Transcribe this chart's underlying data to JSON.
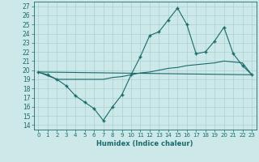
{
  "bg_color": "#cce8e8",
  "line_color": "#1a6b6b",
  "grid_color": "#aad0d0",
  "xlim": [
    -0.5,
    23.5
  ],
  "ylim": [
    13.5,
    27.5
  ],
  "yticks": [
    14,
    15,
    16,
    17,
    18,
    19,
    20,
    21,
    22,
    23,
    24,
    25,
    26,
    27
  ],
  "xticks": [
    0,
    1,
    2,
    3,
    4,
    5,
    6,
    7,
    8,
    9,
    10,
    11,
    12,
    13,
    14,
    15,
    16,
    17,
    18,
    19,
    20,
    21,
    22,
    23
  ],
  "xlabel": "Humidex (Indice chaleur)",
  "line1_x": [
    0,
    1,
    2,
    3,
    4,
    5,
    6,
    7,
    8,
    9,
    10,
    11,
    12,
    13,
    14,
    15,
    16,
    17,
    18,
    19,
    20,
    21,
    22,
    23
  ],
  "line1_y": [
    19.8,
    19.5,
    19.0,
    18.3,
    17.2,
    16.5,
    15.8,
    14.5,
    16.0,
    17.3,
    19.5,
    21.5,
    23.8,
    24.2,
    25.5,
    26.8,
    25.0,
    21.8,
    22.0,
    23.2,
    24.7,
    21.8,
    20.5,
    19.5
  ],
  "line2_x": [
    0,
    1,
    2,
    3,
    4,
    5,
    6,
    7,
    8,
    9,
    10,
    11,
    12,
    13,
    14,
    15,
    16,
    17,
    18,
    19,
    20,
    21,
    22,
    23
  ],
  "line2_y": [
    19.8,
    19.4,
    19.0,
    19.0,
    19.0,
    19.0,
    19.0,
    19.0,
    19.2,
    19.3,
    19.5,
    19.7,
    19.8,
    20.0,
    20.2,
    20.3,
    20.5,
    20.6,
    20.7,
    20.8,
    21.0,
    20.9,
    20.8,
    19.5
  ],
  "line3_x": [
    0,
    23
  ],
  "line3_y": [
    19.8,
    19.5
  ]
}
